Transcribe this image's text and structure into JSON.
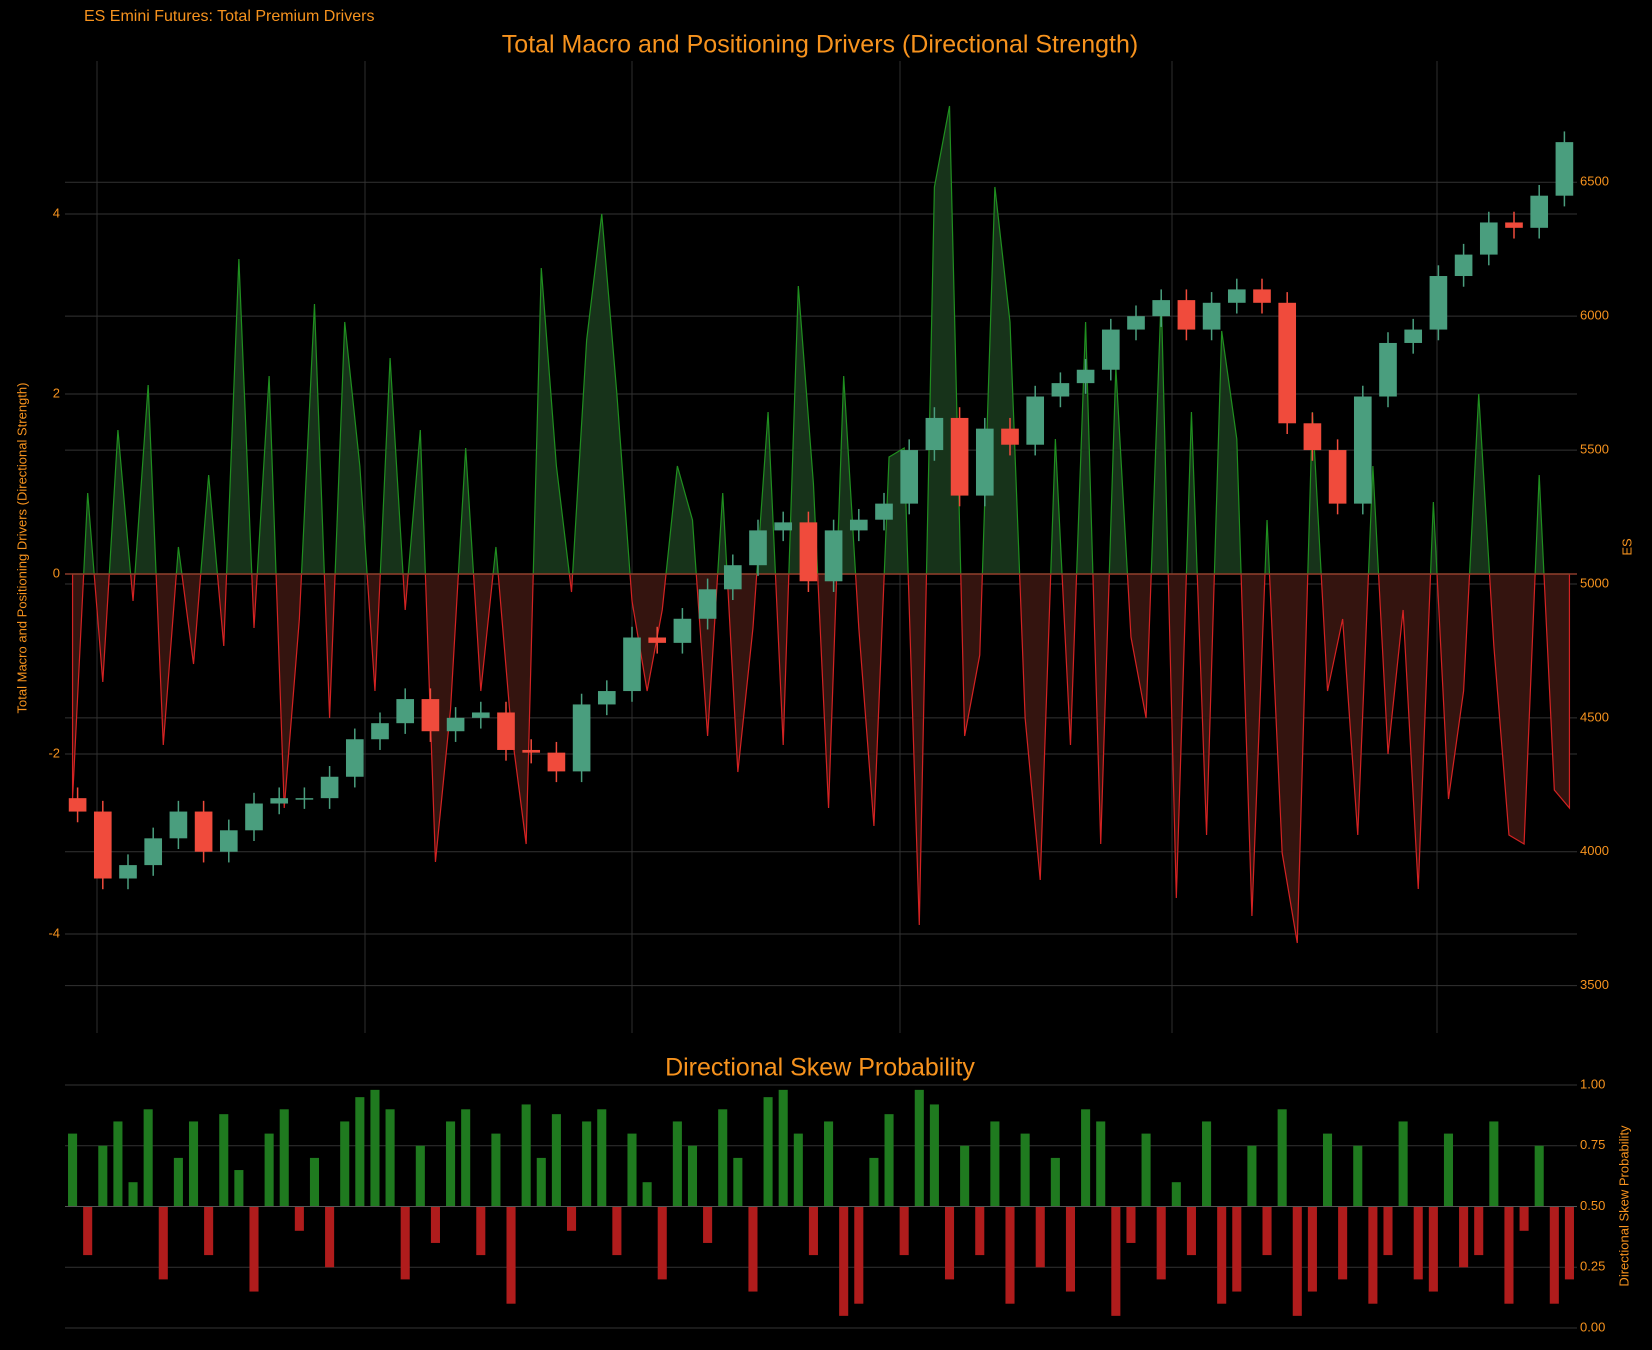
{
  "title": "ES Emini Futures: Total Premium Drivers",
  "chart_data": [
    {
      "type": "area-candlestick",
      "title": "Total Macro and Positioning Drivers (Directional Strength)",
      "ylabel": "Total Macro and Positioning Drivers (Directional Strength)",
      "y2label": "ES",
      "ylim": [
        -5.1,
        5.7
      ],
      "yticks": [
        -4,
        -2,
        0,
        2,
        4
      ],
      "y2lim": [
        3323,
        6953
      ],
      "y2ticks": [
        3500,
        4000,
        4500,
        5000,
        5500,
        6000,
        6500
      ],
      "grid": true,
      "up_color": "#1f8f1f",
      "down_color": "#d42222",
      "values": [
        -2.5,
        0.9,
        -1.2,
        1.6,
        -0.3,
        2.1,
        -1.9,
        0.3,
        -1.0,
        1.1,
        -0.8,
        3.5,
        -0.6,
        2.2,
        -2.6,
        -0.5,
        3.0,
        -1.6,
        2.8,
        1.2,
        -1.3,
        2.4,
        -0.4,
        1.6,
        -3.2,
        -1.5,
        1.4,
        -1.3,
        0.3,
        -1.7,
        -3.0,
        3.4,
        1.2,
        -0.2,
        2.6,
        4.0,
        2.0,
        -0.3,
        -1.3,
        -0.4,
        1.2,
        0.6,
        -1.8,
        0.9,
        -2.2,
        -0.6,
        1.8,
        -1.9,
        3.2,
        1.0,
        -2.6,
        2.2,
        -0.6,
        -2.8,
        1.3,
        1.4,
        -3.9,
        4.3,
        5.2,
        -1.8,
        -0.9,
        4.3,
        2.8,
        -1.6,
        -3.4,
        1.5,
        -1.9,
        2.8,
        -3.0,
        2.3,
        -0.7,
        -1.6,
        3.1,
        -3.6,
        1.8,
        -2.9,
        2.7,
        1.5,
        -3.8,
        0.6,
        -3.1,
        -4.1,
        1.8,
        -1.3,
        -0.5,
        -2.9,
        1.2,
        -2.0,
        -0.4,
        -3.5,
        0.8,
        -2.5,
        -1.3,
        2.0,
        -0.8,
        -2.9,
        -3.0,
        1.1,
        -2.4,
        -2.6
      ],
      "candles": {
        "axis": "y2",
        "up_color": "#4a9e7e",
        "down_color": "#f04b3c",
        "open": [
          4200,
          4150,
          3900,
          3950,
          4050,
          4150,
          4000,
          4080,
          4180,
          4200,
          4200,
          4280,
          4420,
          4480,
          4570,
          4450,
          4500,
          4520,
          4380,
          4370,
          4300,
          4550,
          4600,
          4800,
          4780,
          4870,
          4980,
          5070,
          5200,
          5230,
          5010,
          5200,
          5240,
          5300,
          5500,
          5620,
          5330,
          5580,
          5520,
          5700,
          5750,
          5800,
          5950,
          6000,
          6060,
          5950,
          6050,
          6100,
          6050,
          5600,
          5500,
          5300,
          5700,
          5900,
          5950,
          6150,
          6230,
          6350,
          6330,
          6450
        ],
        "high": [
          4240,
          4190,
          3990,
          4090,
          4190,
          4190,
          4120,
          4220,
          4240,
          4240,
          4320,
          4460,
          4520,
          4610,
          4610,
          4540,
          4560,
          4560,
          4420,
          4410,
          4590,
          4640,
          4840,
          4840,
          4910,
          5020,
          5110,
          5240,
          5270,
          5270,
          5240,
          5280,
          5340,
          5540,
          5660,
          5660,
          5620,
          5620,
          5740,
          5790,
          5840,
          5990,
          6040,
          6100,
          6100,
          6090,
          6140,
          6140,
          6090,
          5640,
          5540,
          5740,
          5940,
          5990,
          6190,
          6270,
          6390,
          6390,
          6490,
          6690
        ],
        "low": [
          4110,
          3860,
          3860,
          3910,
          4010,
          3960,
          3960,
          4040,
          4140,
          4160,
          4160,
          4240,
          4380,
          4440,
          4410,
          4410,
          4460,
          4340,
          4330,
          4260,
          4260,
          4510,
          4560,
          4740,
          4740,
          4830,
          4940,
          5030,
          5160,
          4970,
          4970,
          5160,
          5200,
          5260,
          5460,
          5290,
          5290,
          5480,
          5480,
          5660,
          5710,
          5760,
          5910,
          5960,
          5910,
          5910,
          6010,
          6010,
          5560,
          5460,
          5260,
          5260,
          5660,
          5860,
          5910,
          6110,
          6190,
          6290,
          6290,
          6410
        ],
        "close": [
          4150,
          3900,
          3950,
          4050,
          4150,
          4000,
          4080,
          4180,
          4200,
          4200,
          4280,
          4420,
          4480,
          4570,
          4450,
          4500,
          4520,
          4380,
          4370,
          4300,
          4550,
          4600,
          4800,
          4780,
          4870,
          4980,
          5070,
          5200,
          5230,
          5010,
          5200,
          5240,
          5300,
          5500,
          5620,
          5330,
          5580,
          5520,
          5700,
          5750,
          5800,
          5950,
          6000,
          6060,
          5950,
          6050,
          6100,
          6050,
          5600,
          5500,
          5300,
          5700,
          5900,
          5950,
          6150,
          6230,
          6350,
          6330,
          6450,
          6650
        ]
      }
    },
    {
      "type": "bar",
      "title": "Directional Skew Probability",
      "ylabel": "Directional Skew Probability",
      "ylim": [
        0,
        1
      ],
      "yticks": [
        {
          "value": 0,
          "label": "0.00"
        },
        {
          "value": 0.25,
          "label": "0.25"
        },
        {
          "value": 0.5,
          "label": "0.50"
        },
        {
          "value": 0.75,
          "label": "0.75"
        },
        {
          "value": 1,
          "label": "1.00"
        }
      ],
      "base": 0.5,
      "grid": true,
      "up_color": "#1f7a1f",
      "down_color": "#b01c1c",
      "values": [
        0.8,
        0.3,
        0.75,
        0.85,
        0.6,
        0.9,
        0.2,
        0.7,
        0.85,
        0.3,
        0.88,
        0.65,
        0.15,
        0.8,
        0.9,
        0.4,
        0.7,
        0.25,
        0.85,
        0.95,
        0.98,
        0.9,
        0.2,
        0.75,
        0.35,
        0.85,
        0.9,
        0.3,
        0.8,
        0.1,
        0.92,
        0.7,
        0.88,
        0.4,
        0.85,
        0.9,
        0.3,
        0.8,
        0.6,
        0.2,
        0.85,
        0.75,
        0.35,
        0.9,
        0.7,
        0.15,
        0.95,
        0.98,
        0.8,
        0.3,
        0.85,
        0.05,
        0.1,
        0.7,
        0.88,
        0.3,
        0.98,
        0.92,
        0.2,
        0.75,
        0.3,
        0.85,
        0.1,
        0.8,
        0.25,
        0.7,
        0.15,
        0.9,
        0.85,
        0.05,
        0.35,
        0.8,
        0.2,
        0.6,
        0.3,
        0.85,
        0.1,
        0.15,
        0.75,
        0.3,
        0.9,
        0.05,
        0.15,
        0.8,
        0.2,
        0.75,
        0.1,
        0.3,
        0.85,
        0.2,
        0.15,
        0.8,
        0.25,
        0.3,
        0.85,
        0.1,
        0.4,
        0.75,
        0.1,
        0.2
      ]
    }
  ]
}
